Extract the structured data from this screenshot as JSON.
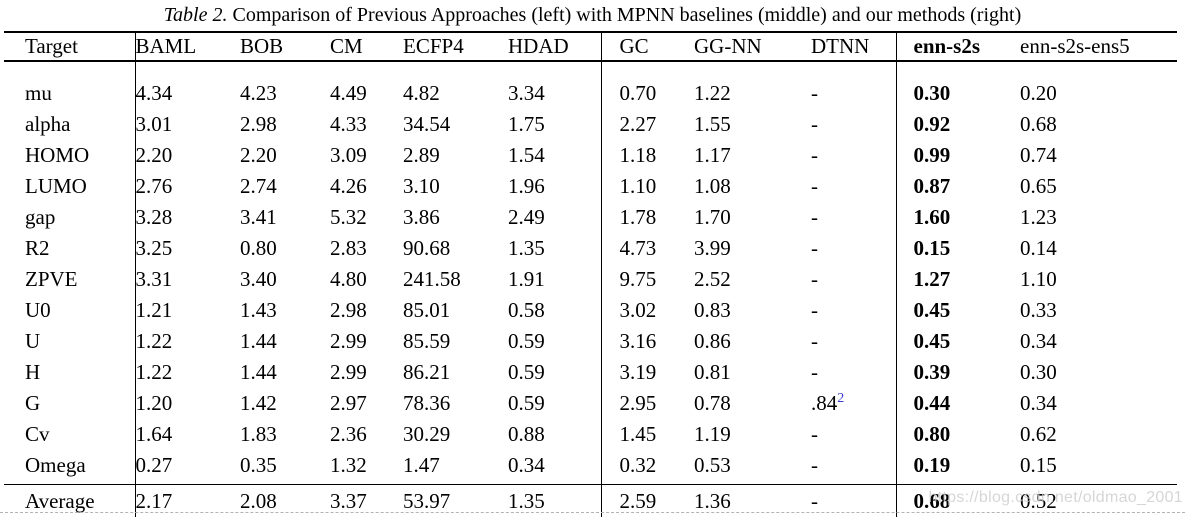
{
  "caption": {
    "label": "Table 2.",
    "text": " Comparison of Previous Approaches (left) with MPNN baselines (middle) and our methods (right)"
  },
  "table": {
    "columns": [
      {
        "id": "target",
        "label": "Target",
        "group": "targets"
      },
      {
        "id": "baml",
        "label": "BAML",
        "group": "previous"
      },
      {
        "id": "bob",
        "label": "BOB",
        "group": "previous"
      },
      {
        "id": "cm",
        "label": "CM",
        "group": "previous"
      },
      {
        "id": "ecfp4",
        "label": "ECFP4",
        "group": "previous"
      },
      {
        "id": "hdad",
        "label": "HDAD",
        "group": "previous"
      },
      {
        "id": "gc",
        "label": "GC",
        "group": "baselines"
      },
      {
        "id": "gg-nn",
        "label": "GG-NN",
        "group": "baselines"
      },
      {
        "id": "dtnn",
        "label": "DTNN",
        "group": "baselines"
      },
      {
        "id": "enn-s2s",
        "label": "enn-s2s",
        "group": "ours",
        "emphasis": true
      },
      {
        "id": "enn-s2s-ens5",
        "label": "enn-s2s-ens5",
        "group": "ours"
      }
    ],
    "rows": [
      {
        "target": "mu",
        "values": [
          "4.34",
          "4.23",
          "4.49",
          "4.82",
          "3.34",
          "0.70",
          "1.22",
          "-",
          "0.30",
          "0.20"
        ]
      },
      {
        "target": "alpha",
        "values": [
          "3.01",
          "2.98",
          "4.33",
          "34.54",
          "1.75",
          "2.27",
          "1.55",
          "-",
          "0.92",
          "0.68"
        ]
      },
      {
        "target": "HOMO",
        "values": [
          "2.20",
          "2.20",
          "3.09",
          "2.89",
          "1.54",
          "1.18",
          "1.17",
          "-",
          "0.99",
          "0.74"
        ]
      },
      {
        "target": "LUMO",
        "values": [
          "2.76",
          "2.74",
          "4.26",
          "3.10",
          "1.96",
          "1.10",
          "1.08",
          "-",
          "0.87",
          "0.65"
        ]
      },
      {
        "target": "gap",
        "values": [
          "3.28",
          "3.41",
          "5.32",
          "3.86",
          "2.49",
          "1.78",
          "1.70",
          "-",
          "1.60",
          "1.23"
        ]
      },
      {
        "target": "R2",
        "values": [
          "3.25",
          "0.80",
          "2.83",
          "90.68",
          "1.35",
          "4.73",
          "3.99",
          "-",
          "0.15",
          "0.14"
        ]
      },
      {
        "target": "ZPVE",
        "values": [
          "3.31",
          "3.40",
          "4.80",
          "241.58",
          "1.91",
          "9.75",
          "2.52",
          "-",
          "1.27",
          "1.10"
        ]
      },
      {
        "target": "U0",
        "values": [
          "1.21",
          "1.43",
          "2.98",
          "85.01",
          "0.58",
          "3.02",
          "0.83",
          "-",
          "0.45",
          "0.33"
        ]
      },
      {
        "target": "U",
        "values": [
          "1.22",
          "1.44",
          "2.99",
          "85.59",
          "0.59",
          "3.16",
          "0.86",
          "-",
          "0.45",
          "0.34"
        ]
      },
      {
        "target": "H",
        "values": [
          "1.22",
          "1.44",
          "2.99",
          "86.21",
          "0.59",
          "3.19",
          "0.81",
          "-",
          "0.39",
          "0.30"
        ]
      },
      {
        "target": "G",
        "values": [
          "1.20",
          "1.42",
          "2.97",
          "78.36",
          "0.59",
          "2.95",
          "0.78",
          ".84",
          "0.44",
          "0.34"
        ]
      },
      {
        "target": "Cv",
        "values": [
          "1.64",
          "1.83",
          "2.36",
          "30.29",
          "0.88",
          "1.45",
          "1.19",
          "-",
          "0.80",
          "0.62"
        ]
      },
      {
        "target": "Omega",
        "values": [
          "0.27",
          "0.35",
          "1.32",
          "1.47",
          "0.34",
          "0.32",
          "0.53",
          "-",
          "0.19",
          "0.15"
        ]
      }
    ],
    "average_row": {
      "target": "Average",
      "values": [
        "2.17",
        "2.08",
        "3.37",
        "53.97",
        "1.35",
        "2.59",
        "1.36",
        "-",
        "0.68",
        "0.52"
      ]
    },
    "footnote": {
      "row": "G",
      "column": "dtnn",
      "marker": "2",
      "color": "#3a3acc"
    }
  },
  "watermark": {
    "text": "https://blog.csdn.net/oldmao_2001",
    "color": "#c9c9c9"
  }
}
